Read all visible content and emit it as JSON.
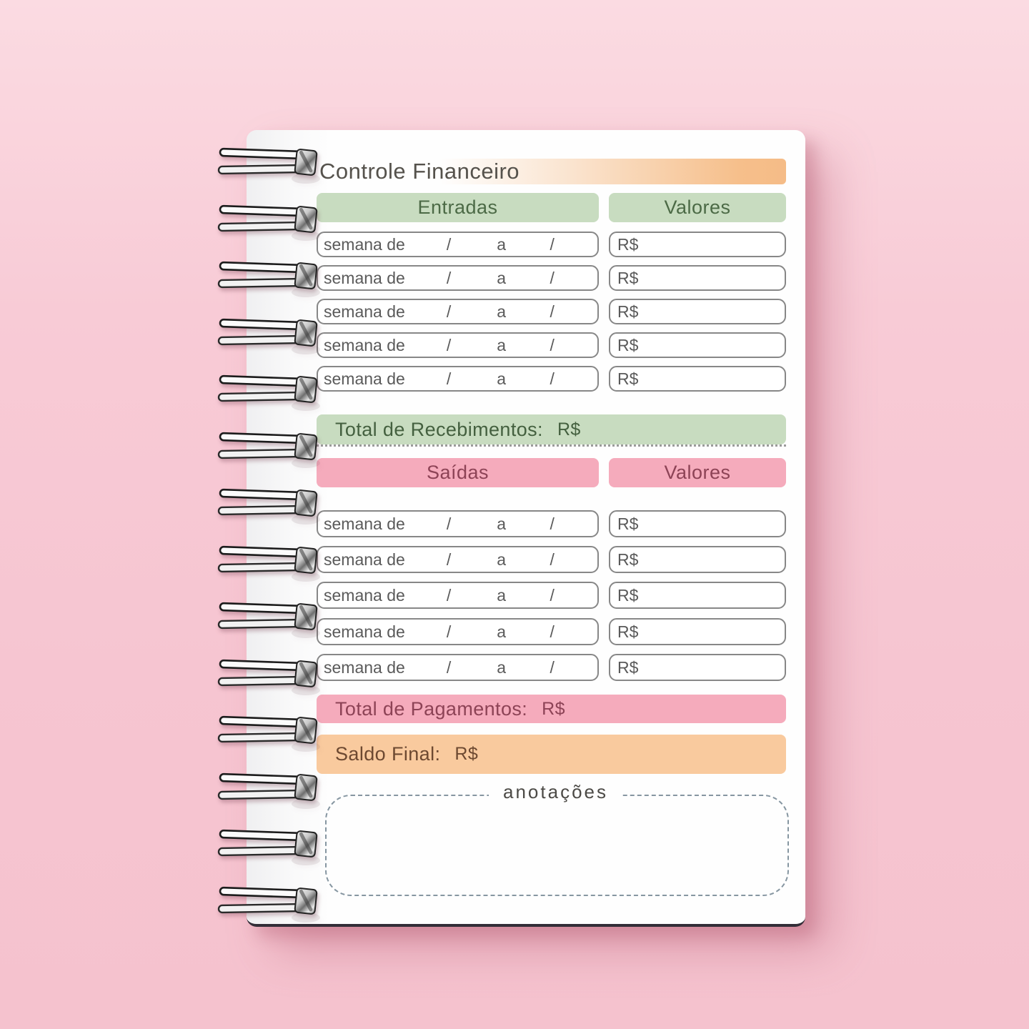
{
  "page": {
    "title": "Controle Financeiro"
  },
  "income": {
    "header": "Entradas",
    "values_header": "Valores",
    "rows": [
      {
        "label": "semana de",
        "sep1": "/",
        "mid": "a",
        "sep2": "/",
        "currency": "R$"
      },
      {
        "label": "semana de",
        "sep1": "/",
        "mid": "a",
        "sep2": "/",
        "currency": "R$"
      },
      {
        "label": "semana de",
        "sep1": "/",
        "mid": "a",
        "sep2": "/",
        "currency": "R$"
      },
      {
        "label": "semana de",
        "sep1": "/",
        "mid": "a",
        "sep2": "/",
        "currency": "R$"
      },
      {
        "label": "semana de",
        "sep1": "/",
        "mid": "a",
        "sep2": "/",
        "currency": "R$"
      }
    ],
    "total_label": "Total de Recebimentos:",
    "total_currency": "R$"
  },
  "expenses": {
    "header": "Saídas",
    "values_header": "Valores",
    "rows": [
      {
        "label": "semana de",
        "sep1": "/",
        "mid": "a",
        "sep2": "/",
        "currency": "R$"
      },
      {
        "label": "semana de",
        "sep1": "/",
        "mid": "a",
        "sep2": "/",
        "currency": "R$"
      },
      {
        "label": "semana de",
        "sep1": "/",
        "mid": "a",
        "sep2": "/",
        "currency": "R$"
      },
      {
        "label": "semana de",
        "sep1": "/",
        "mid": "a",
        "sep2": "/",
        "currency": "R$"
      },
      {
        "label": "semana de",
        "sep1": "/",
        "mid": "a",
        "sep2": "/",
        "currency": "R$"
      }
    ],
    "total_label": "Total de Pagamentos:",
    "total_currency": "R$"
  },
  "summary": {
    "label": "Saldo Final:",
    "currency": "R$"
  },
  "notes": {
    "label": "anotações"
  },
  "colors": {
    "background_pink": "#f6c5d1",
    "page_white": "#fefefe",
    "title_gradient_peach": "#f6bf8b",
    "green_bar": "#c8dcc0",
    "green_text": "#4c6a46",
    "pink_bar": "#f5abbc",
    "pink_text": "#8d4356",
    "orange_bar": "#f9ca9e",
    "orange_text": "#6d4931",
    "field_border": "#878787",
    "field_text": "#5a5a5a"
  }
}
